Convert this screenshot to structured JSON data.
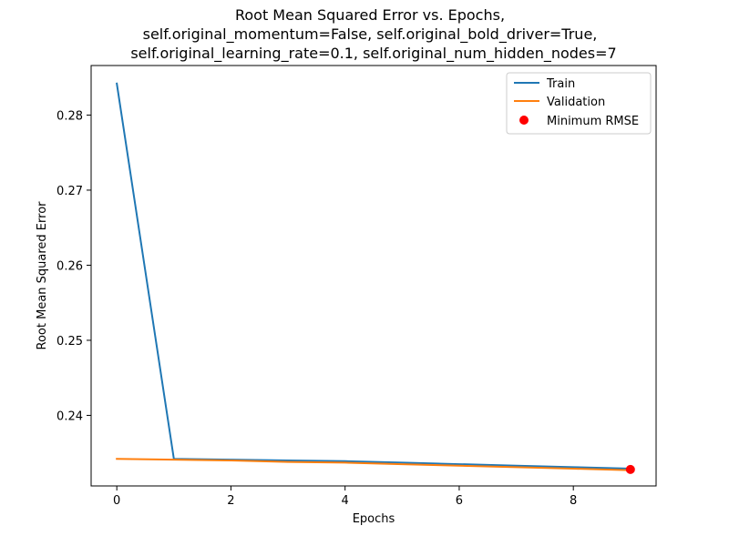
{
  "chart_data": {
    "type": "line",
    "title_lines": [
      "Root Mean Squared Error vs. Epochs,",
      "self.original_momentum=False, self.original_bold_driver=True,",
      "self.original_learning_rate=0.1, self.original_num_hidden_nodes=7"
    ],
    "xlabel": "Epochs",
    "ylabel": "Root Mean Squared Error",
    "x": [
      0,
      1,
      2,
      3,
      4,
      5,
      6,
      7,
      8,
      9
    ],
    "xlim": [
      -0.45,
      9.45
    ],
    "ylim": [
      0.2306,
      0.2866
    ],
    "xticks": [
      0,
      2,
      4,
      6,
      8
    ],
    "xtick_labels": [
      "0",
      "2",
      "4",
      "6",
      "8"
    ],
    "yticks": [
      0.24,
      0.25,
      0.26,
      0.27,
      0.28
    ],
    "ytick_labels": [
      "0.24",
      "0.25",
      "0.26",
      "0.27",
      "0.28"
    ],
    "grid": false,
    "legend_position": "top-right",
    "series": [
      {
        "name": "Train",
        "color": "#1f77b4",
        "values": [
          0.2842,
          0.2342,
          0.2341,
          0.234,
          0.2339,
          0.2337,
          0.2335,
          0.2333,
          0.2331,
          0.2329
        ]
      },
      {
        "name": "Validation",
        "color": "#ff7f0e",
        "values": [
          0.2342,
          0.2341,
          0.234,
          0.2338,
          0.2337,
          0.2335,
          0.2333,
          0.2331,
          0.2329,
          0.2327
        ]
      }
    ],
    "minimum_marker": {
      "name": "Minimum RMSE",
      "color": "#ff0000",
      "x": 9,
      "y": 0.2328
    }
  }
}
